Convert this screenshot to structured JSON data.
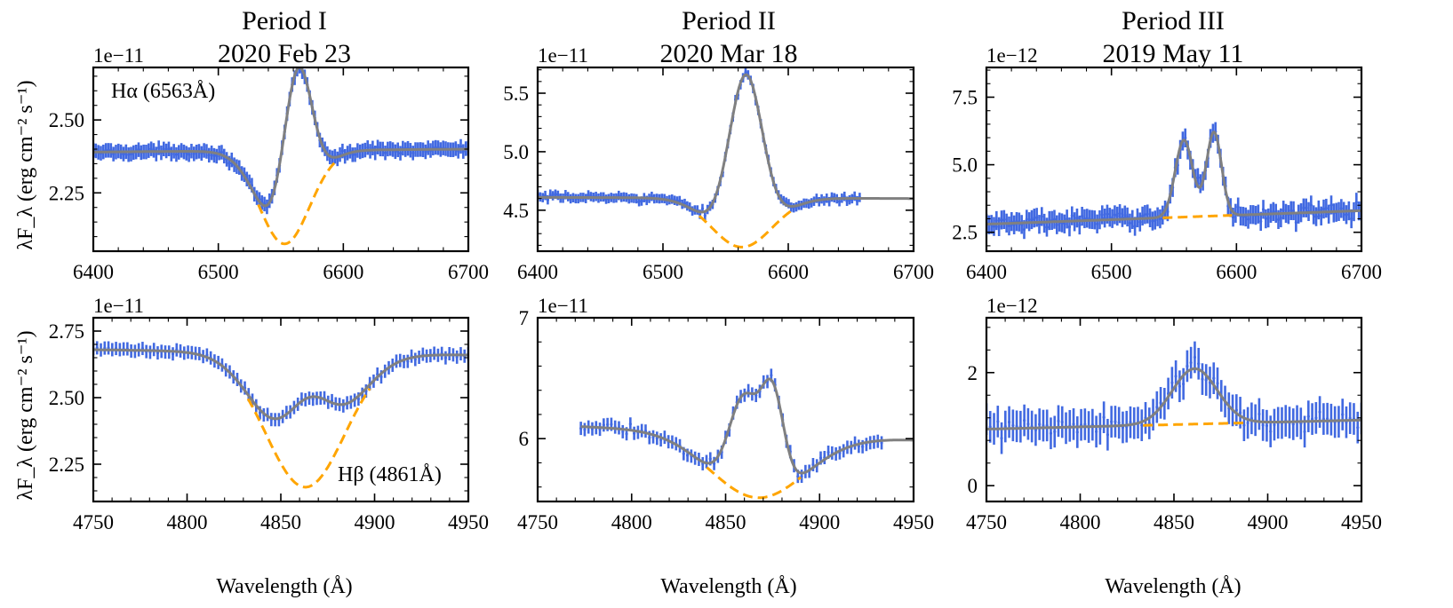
{
  "colors": {
    "data": "#4169e1",
    "fit": "#808080",
    "continuum": "#ffa500",
    "axis": "#000000"
  },
  "columns": [
    {
      "title_line1": "Period I",
      "title_line2": "2020 Feb 23"
    },
    {
      "title_line1": "Period II",
      "title_line2": "2020 Mar 18"
    },
    {
      "title_line1": "Period III",
      "title_line2": "2019 May 11"
    }
  ],
  "ylabel_top": "λF_λ (erg cm⁻² s⁻¹)",
  "ylabel_bottom": "λF_λ (erg cm⁻² s⁻¹)",
  "xlabel": "Wavelength (Å)",
  "chart_data": [
    {
      "id": "p1-halpha",
      "type": "line",
      "offset_label": "1e−11",
      "annotation": "Hα (6563Å)",
      "xlim": [
        6400,
        6700
      ],
      "ylim": [
        2.05,
        2.68
      ],
      "xticks": [
        6400,
        6500,
        6600,
        6700
      ],
      "xticklabels": [
        "6400",
        "6500",
        "6600",
        "6700"
      ],
      "yticks": [
        2.25,
        2.5
      ],
      "yticklabels": [
        "2.25",
        "2.50"
      ],
      "components": {
        "continuum": [
          [
            6400,
            2.39
          ],
          [
            6700,
            2.4
          ]
        ],
        "absorption": [
          {
            "center": 6553,
            "depth": 0.32,
            "sigma": 20
          }
        ],
        "emission": [
          {
            "center": 6563,
            "amp": 0.56,
            "sigma": 11.5
          }
        ]
      },
      "data_range": [
        6400,
        6700
      ],
      "n_points": 150,
      "errbar": 0.025,
      "noise": 0.012
    },
    {
      "id": "p2-halpha",
      "type": "line",
      "offset_label": "1e−11",
      "xlim": [
        6400,
        6700
      ],
      "ylim": [
        4.15,
        5.72
      ],
      "xticks": [
        6400,
        6500,
        6600,
        6700
      ],
      "xticklabels": [
        "6400",
        "6500",
        "6600",
        "6700"
      ],
      "yticks": [
        4.5,
        5.0,
        5.5
      ],
      "yticklabels": [
        "4.5",
        "5.0",
        "5.5"
      ],
      "components": {
        "continuum": [
          [
            6400,
            4.61
          ],
          [
            6700,
            4.6
          ]
        ],
        "absorption": [
          {
            "center": 6563,
            "depth": 0.42,
            "sigma": 24
          }
        ],
        "emission": [
          {
            "center": 6566,
            "amp": 1.47,
            "sigma": 13.5
          }
        ]
      },
      "data_range": [
        6400,
        6657
      ],
      "n_points": 128,
      "errbar": 0.04,
      "noise": 0.03
    },
    {
      "id": "p3-halpha",
      "type": "line",
      "offset_label": "1e−12",
      "xlim": [
        6400,
        6700
      ],
      "ylim": [
        1.8,
        8.6
      ],
      "xticks": [
        6400,
        6500,
        6600,
        6700
      ],
      "xticklabels": [
        "6400",
        "6500",
        "6600",
        "6700"
      ],
      "yticks": [
        2.5,
        5.0,
        7.5
      ],
      "yticklabels": [
        "2.5",
        "5.0",
        "7.5"
      ],
      "components": {
        "continuum": [
          [
            6400,
            2.8
          ],
          [
            6700,
            3.3
          ]
        ],
        "absorption": [],
        "emission": [
          {
            "center": 6558,
            "amp": 2.85,
            "sigma": 7
          },
          {
            "center": 6582,
            "amp": 3.1,
            "sigma": 6
          }
        ]
      },
      "data_range": [
        6400,
        6700
      ],
      "n_points": 150,
      "errbar": 0.35,
      "noise": 0.28
    },
    {
      "id": "p1-hbeta",
      "type": "line",
      "offset_label": "1e−11",
      "annotation": "Hβ (4861Å)",
      "xlim": [
        4750,
        4950
      ],
      "ylim": [
        2.11,
        2.8
      ],
      "xticks": [
        4750,
        4800,
        4850,
        4900,
        4950
      ],
      "xticklabels": [
        "4750",
        "4800",
        "4850",
        "4900",
        "4950"
      ],
      "yticks": [
        2.25,
        2.5,
        2.75
      ],
      "yticklabels": [
        "2.25",
        "2.50",
        "2.75"
      ],
      "components": {
        "continuum": [
          [
            4750,
            2.68
          ],
          [
            4950,
            2.66
          ]
        ],
        "absorption": [
          {
            "center": 4863,
            "depth": 0.505,
            "sigma": 21
          }
        ],
        "emission": [
          {
            "center": 4865,
            "amp": 0.335,
            "sigma": 13
          }
        ]
      },
      "data_range": [
        4750,
        4950
      ],
      "n_points": 100,
      "errbar": 0.025,
      "noise": 0.012
    },
    {
      "id": "p2-hbeta",
      "type": "line",
      "offset_label": "1e−11",
      "xlim": [
        4750,
        4950
      ],
      "ylim": [
        5.48,
        7.0
      ],
      "xticks": [
        4750,
        4800,
        4850,
        4900,
        4950
      ],
      "xticklabels": [
        "4750",
        "4800",
        "4850",
        "4900",
        "4950"
      ],
      "yticks": [
        6,
        7
      ],
      "yticklabels": [
        "6",
        "7"
      ],
      "components": {
        "continuum": [
          [
            4773,
            6.1
          ],
          [
            4933,
            6.0
          ]
        ],
        "absorption": [
          {
            "center": 4867,
            "depth": 0.53,
            "sigma": 25
          }
        ],
        "emission": [
          {
            "center": 4860,
            "amp": 0.8,
            "sigma": 8
          },
          {
            "center": 4875,
            "amp": 0.8,
            "sigma": 6
          }
        ]
      },
      "data_range": [
        4773,
        4933
      ],
      "n_points": 80,
      "errbar": 0.055,
      "noise": 0.045
    },
    {
      "id": "p3-hbeta",
      "type": "line",
      "offset_label": "1e−12",
      "xlim": [
        4750,
        4950
      ],
      "ylim": [
        -0.28,
        2.97
      ],
      "xticks": [
        4750,
        4800,
        4850,
        4900,
        4950
      ],
      "xticklabels": [
        "4750",
        "4800",
        "4850",
        "4900",
        "4950"
      ],
      "yticks": [
        0,
        2
      ],
      "yticklabels": [
        "0",
        "2"
      ],
      "components": {
        "continuum": [
          [
            4750,
            1.0
          ],
          [
            4950,
            1.16
          ]
        ],
        "absorption": [],
        "emission": [
          {
            "center": 4861,
            "amp": 0.98,
            "sigma": 12
          }
        ]
      },
      "data_range": [
        4750,
        4950
      ],
      "n_points": 100,
      "errbar": 0.28,
      "noise": 0.22
    }
  ]
}
